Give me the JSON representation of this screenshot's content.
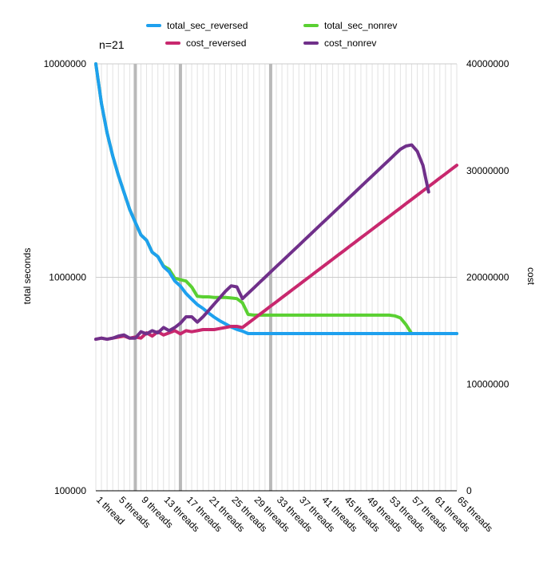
{
  "chart_data": {
    "type": "line",
    "annotation": "n=21",
    "x": [
      1,
      2,
      3,
      4,
      5,
      6,
      7,
      8,
      9,
      10,
      11,
      12,
      13,
      14,
      15,
      16,
      17,
      18,
      19,
      20,
      21,
      22,
      23,
      24,
      25,
      26,
      27,
      28,
      29,
      30,
      31,
      32,
      33,
      34,
      35,
      36,
      37,
      38,
      39,
      40,
      41,
      42,
      43,
      44,
      45,
      46,
      47,
      48,
      49,
      50,
      51,
      52,
      53,
      54,
      55,
      56,
      57,
      58,
      59,
      60,
      61,
      62,
      63,
      64,
      65
    ],
    "x_tick_labels": [
      "1 thread",
      "5 threads",
      "9 threads",
      "13 threads",
      "17 threads",
      "21 threads",
      "25 threads",
      "29 threads",
      "33 threads",
      "37 threads",
      "41 threads",
      "45 threads",
      "49 threads",
      "53 threads",
      "57 threads",
      "61 threads",
      "65 threads"
    ],
    "x_tick_values": [
      1,
      5,
      9,
      13,
      17,
      21,
      25,
      29,
      33,
      37,
      41,
      45,
      49,
      53,
      57,
      61,
      65
    ],
    "highlight_x": [
      8,
      16,
      32
    ],
    "y_left": {
      "label": "total seconds",
      "scale": "log",
      "range": [
        100000,
        10000000
      ],
      "ticks": [
        "100000",
        "1000000",
        "10000000"
      ],
      "tick_values": [
        100000,
        1000000,
        10000000
      ]
    },
    "y_right": {
      "label": "cost",
      "scale": "linear",
      "range": [
        0,
        40000000
      ],
      "ticks": [
        "0",
        "10000000",
        "20000000",
        "30000000",
        "40000000"
      ],
      "tick_values": [
        0,
        10000000,
        20000000,
        30000000,
        40000000
      ]
    },
    "legend": [
      "total_sec_reversed",
      "total_sec_nonrev",
      "cost_reversed",
      "cost_nonrev"
    ],
    "series": [
      {
        "name": "total_sec_nonrev",
        "axis": "left",
        "color": "#5AD032",
        "values": [
          10000000,
          6500000,
          4750000,
          3700000,
          3000000,
          2500000,
          2080000,
          1810000,
          1580000,
          1490000,
          1310000,
          1250000,
          1130000,
          1090000,
          990000,
          975000,
          960000,
          900000,
          815000,
          810000,
          810000,
          805000,
          805000,
          805000,
          800000,
          795000,
          760000,
          670000,
          665000,
          665000,
          665000,
          665000,
          665000,
          665000,
          665000,
          665000,
          665000,
          665000,
          665000,
          665000,
          665000,
          665000,
          665000,
          665000,
          665000,
          665000,
          665000,
          665000,
          665000,
          665000,
          665000,
          665000,
          665000,
          660000,
          645000,
          600000,
          545000,
          545000,
          545000,
          545000,
          545000,
          545000,
          545000,
          545000,
          545000
        ]
      },
      {
        "name": "total_sec_reversed",
        "axis": "left",
        "color": "#1EA0EE",
        "values": [
          10000000,
          6500000,
          4750000,
          3700000,
          3000000,
          2500000,
          2080000,
          1810000,
          1580000,
          1490000,
          1310000,
          1250000,
          1120000,
          1060000,
          960000,
          910000,
          840000,
          790000,
          745000,
          715000,
          680000,
          650000,
          625000,
          605000,
          585000,
          570000,
          560000,
          545000,
          545000,
          545000,
          545000,
          545000,
          545000,
          545000,
          545000,
          545000,
          545000,
          545000,
          545000,
          545000,
          545000,
          545000,
          545000,
          545000,
          545000,
          545000,
          545000,
          545000,
          545000,
          545000,
          545000,
          545000,
          545000,
          545000,
          545000,
          545000,
          545000,
          545000,
          545000,
          545000,
          545000,
          545000,
          545000,
          545000,
          545000
        ]
      },
      {
        "name": "cost_reversed",
        "axis": "right",
        "color": "#C8286E",
        "values": [
          14200000,
          14300000,
          14200000,
          14300000,
          14400000,
          14500000,
          14300000,
          14400000,
          14300000,
          14800000,
          14500000,
          14900000,
          14600000,
          14800000,
          15000000,
          14700000,
          15000000,
          14900000,
          15000000,
          15100000,
          15100000,
          15100000,
          15200000,
          15300000,
          15400000,
          15400000,
          15300000,
          15700000,
          16100000,
          16500000,
          16900000,
          17300000,
          17700000,
          18100000,
          18500000,
          18900000,
          19300000,
          19700000,
          20100000,
          20500000,
          20900000,
          21300000,
          21700000,
          22100000,
          22500000,
          22900000,
          23300000,
          23700000,
          24100000,
          24500000,
          24900000,
          25300000,
          25700000,
          26100000,
          26500000,
          26900000,
          27300000,
          27700000,
          28100000,
          28500000,
          28900000,
          29300000,
          29700000,
          30100000,
          30500000
        ]
      },
      {
        "name": "cost_nonrev",
        "axis": "right",
        "color": "#70308A",
        "values": [
          14200000,
          14300000,
          14200000,
          14300000,
          14500000,
          14600000,
          14300000,
          14300000,
          14900000,
          14700000,
          15000000,
          14800000,
          15300000,
          15000000,
          15300000,
          15700000,
          16300000,
          16300000,
          15800000,
          16300000,
          16900000,
          17500000,
          18100000,
          18700000,
          19200000,
          19100000,
          18000000,
          18500000,
          19000000,
          19500000,
          20000000,
          20500000,
          21000000,
          21500000,
          22000000,
          22500000,
          23000000,
          23500000,
          24000000,
          24500000,
          25000000,
          25500000,
          26000000,
          26500000,
          27000000,
          27500000,
          28000000,
          28500000,
          29000000,
          29500000,
          30000000,
          30500000,
          31000000,
          31500000,
          32000000,
          32300000,
          32400000,
          31800000,
          30500000,
          28000000,
          null,
          null,
          null,
          null,
          null
        ]
      }
    ]
  }
}
